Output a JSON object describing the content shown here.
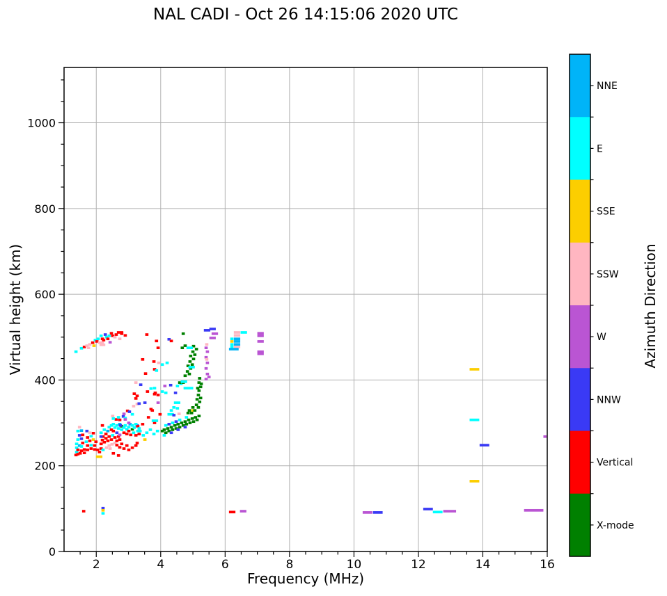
{
  "title": "NAL CADI - Oct 26 14:15:06 2020 UTC",
  "chart_data": {
    "type": "scatter",
    "title": "NAL CADI - Oct 26 14:15:06 2020 UTC",
    "xlabel": "Frequency (MHz)",
    "ylabel": "Virtual height (km)",
    "xlim": [
      1,
      16
    ],
    "ylim": [
      0,
      1129
    ],
    "x_major_ticks": [
      2,
      4,
      6,
      8,
      10,
      12,
      14,
      16
    ],
    "y_major_ticks": [
      0,
      200,
      400,
      600,
      800,
      1000
    ],
    "x_minor_step": 0.5,
    "y_minor_step": 50,
    "grid": true,
    "grid_color": "#b0b0b0",
    "point_bin": {
      "freq_mhz": 0.1,
      "height_km": 6
    },
    "colorbar": {
      "label": "Azimuth Direction",
      "categories_top_to_bottom": [
        {
          "name": "NNE",
          "color": "#00b4f8"
        },
        {
          "name": "E",
          "color": "#00ffff"
        },
        {
          "name": "SSE",
          "color": "#fcce00"
        },
        {
          "name": "SSW",
          "color": "#ffb6c1"
        },
        {
          "name": "W",
          "color": "#ba55d3"
        },
        {
          "name": "NNW",
          "color": "#3a3af5"
        },
        {
          "name": "Vertical",
          "color": "#ff0000"
        },
        {
          "name": "X-mode",
          "color": "#008000"
        }
      ]
    },
    "points_format": "[freq_MHz, virtual_height_km, category_index, width_bins(optional)]",
    "points": [
      [
        1.37,
        466,
        1
      ],
      [
        1.54,
        474,
        1
      ],
      [
        1.63,
        477,
        6
      ],
      [
        1.71,
        480,
        3
      ],
      [
        1.76,
        475,
        3
      ],
      [
        1.8,
        483,
        3
      ],
      [
        1.89,
        487,
        6
      ],
      [
        1.93,
        480,
        2
      ],
      [
        1.97,
        493,
        1
      ],
      [
        2.02,
        490,
        6
      ],
      [
        2.06,
        496,
        1
      ],
      [
        2.1,
        487,
        3
      ],
      [
        2.15,
        482,
        3
      ],
      [
        2.19,
        487,
        3
      ],
      [
        2.23,
        482,
        3
      ],
      [
        2.15,
        503,
        1
      ],
      [
        2.19,
        496,
        6
      ],
      [
        2.23,
        493,
        6
      ],
      [
        2.28,
        506,
        5
      ],
      [
        2.32,
        500,
        1
      ],
      [
        2.36,
        496,
        6
      ],
      [
        2.4,
        503,
        1
      ],
      [
        2.47,
        509,
        6
      ],
      [
        2.51,
        503,
        6
      ],
      [
        2.58,
        500,
        3
      ],
      [
        2.62,
        506,
        6
      ],
      [
        2.69,
        511,
        6,
        2
      ],
      [
        2.79,
        508,
        6
      ],
      [
        2.9,
        504,
        6
      ],
      [
        2.73,
        496,
        3
      ],
      [
        2.43,
        488,
        4
      ],
      [
        3.57,
        506,
        6
      ],
      [
        3.87,
        491,
        6
      ],
      [
        3.92,
        475,
        6
      ],
      [
        3.44,
        448,
        6
      ],
      [
        3.79,
        443,
        6
      ],
      [
        3.94,
        440,
        3
      ],
      [
        4.05,
        436,
        1
      ],
      [
        4.2,
        440,
        1
      ],
      [
        4.26,
        495,
        5
      ],
      [
        4.33,
        491,
        6
      ],
      [
        3.53,
        415,
        6
      ],
      [
        3.81,
        425,
        6
      ],
      [
        3.87,
        422,
        1
      ],
      [
        3.23,
        394,
        3
      ],
      [
        3.38,
        389,
        5
      ],
      [
        3.18,
        368,
        6
      ],
      [
        3.27,
        363,
        6
      ],
      [
        3.81,
        367,
        6
      ],
      [
        3.92,
        365,
        6
      ],
      [
        4.46,
        370,
        5
      ],
      [
        2.51,
        316,
        3
      ],
      [
        2.62,
        308,
        6
      ],
      [
        2.73,
        307,
        6
      ],
      [
        2.84,
        315,
        5
      ],
      [
        2.9,
        311,
        1
      ],
      [
        2.97,
        328,
        6
      ],
      [
        3.03,
        326,
        5
      ],
      [
        3.12,
        320,
        1
      ],
      [
        3.16,
        339,
        3
      ],
      [
        3.27,
        344,
        3
      ],
      [
        3.33,
        345,
        5
      ],
      [
        3.51,
        347,
        5
      ],
      [
        3.59,
        373,
        6
      ],
      [
        3.7,
        380,
        1
      ],
      [
        3.81,
        381,
        1
      ],
      [
        3.83,
        370,
        6
      ],
      [
        3.23,
        357,
        6
      ],
      [
        3.7,
        332,
        6
      ],
      [
        3.74,
        329,
        6
      ],
      [
        3.81,
        300,
        6
      ],
      [
        4.05,
        373,
        1
      ],
      [
        4.16,
        370,
        1
      ],
      [
        4.26,
        320,
        1,
        2
      ],
      [
        4.41,
        336,
        1
      ],
      [
        4.52,
        334,
        1
      ],
      [
        4.41,
        318,
        5
      ],
      [
        4.57,
        321,
        3
      ],
      [
        3.92,
        347,
        4
      ],
      [
        4.13,
        386,
        4
      ],
      [
        4.31,
        388,
        5
      ],
      [
        4.52,
        386,
        1
      ],
      [
        4.63,
        391,
        1
      ],
      [
        4.59,
        394,
        7
      ],
      [
        4.7,
        394,
        7
      ],
      [
        3.98,
        320,
        6
      ],
      [
        3.62,
        313,
        6
      ],
      [
        3.77,
        305,
        1,
        2
      ],
      [
        3.44,
        297,
        6
      ],
      [
        3.27,
        294,
        5
      ],
      [
        3.51,
        261,
        2
      ],
      [
        5.0,
        329,
        2
      ],
      [
        1.39,
        232,
        1
      ],
      [
        1.39,
        242,
        1
      ],
      [
        1.43,
        237,
        6
      ],
      [
        1.43,
        227,
        6
      ],
      [
        1.48,
        247,
        0
      ],
      [
        1.39,
        251,
        1
      ],
      [
        1.43,
        261,
        1
      ],
      [
        1.48,
        271,
        5
      ],
      [
        1.43,
        281,
        1
      ],
      [
        1.48,
        290,
        3
      ],
      [
        1.54,
        235,
        6
      ],
      [
        1.54,
        245,
        1
      ],
      [
        1.58,
        253,
        6
      ],
      [
        1.54,
        263,
        5
      ],
      [
        1.58,
        272,
        6
      ],
      [
        1.54,
        282,
        0
      ],
      [
        1.5,
        229,
        6
      ],
      [
        1.37,
        225,
        6
      ],
      [
        1.63,
        238,
        6
      ],
      [
        1.73,
        237,
        6
      ],
      [
        1.84,
        240,
        6
      ],
      [
        1.95,
        238,
        6
      ],
      [
        2.04,
        237,
        6
      ],
      [
        2.15,
        240,
        6
      ],
      [
        1.63,
        230,
        6
      ],
      [
        1.73,
        247,
        6
      ],
      [
        1.84,
        248,
        1
      ],
      [
        1.95,
        247,
        6
      ],
      [
        1.69,
        256,
        1
      ],
      [
        1.8,
        258,
        6
      ],
      [
        1.91,
        261,
        2
      ],
      [
        1.99,
        256,
        6
      ],
      [
        1.73,
        266,
        6
      ],
      [
        1.84,
        269,
        1
      ],
      [
        1.71,
        281,
        5
      ],
      [
        1.8,
        277,
        3
      ],
      [
        1.91,
        276,
        6
      ],
      [
        2.04,
        221,
        2,
        2
      ],
      [
        2.1,
        232,
        6
      ],
      [
        2.21,
        237,
        1
      ],
      [
        2.32,
        242,
        3
      ],
      [
        2.4,
        247,
        3
      ],
      [
        2.49,
        250,
        3
      ],
      [
        2.58,
        253,
        3
      ],
      [
        2.43,
        240,
        3
      ],
      [
        2.15,
        251,
        6
      ],
      [
        2.19,
        260,
        6
      ],
      [
        2.25,
        255,
        6
      ],
      [
        2.3,
        264,
        6
      ],
      [
        2.36,
        258,
        6
      ],
      [
        2.21,
        268,
        6
      ],
      [
        2.3,
        274,
        6
      ],
      [
        2.4,
        268,
        6
      ],
      [
        2.47,
        261,
        6
      ],
      [
        2.51,
        271,
        1
      ],
      [
        2.15,
        277,
        1
      ],
      [
        2.25,
        284,
        1
      ],
      [
        2.36,
        281,
        0
      ],
      [
        2.4,
        290,
        1
      ],
      [
        2.19,
        294,
        6
      ],
      [
        2.47,
        284,
        6
      ],
      [
        2.53,
        281,
        6
      ],
      [
        2.58,
        266,
        6
      ],
      [
        2.64,
        258,
        6
      ],
      [
        2.69,
        268,
        6
      ],
      [
        2.73,
        261,
        6
      ],
      [
        2.15,
        268,
        5
      ],
      [
        2.47,
        294,
        1
      ],
      [
        2.53,
        297,
        1
      ],
      [
        2.58,
        289,
        1
      ],
      [
        2.64,
        294,
        1
      ],
      [
        2.69,
        287,
        1
      ],
      [
        2.73,
        297,
        0
      ],
      [
        2.79,
        292,
        7
      ],
      [
        2.79,
        284,
        1
      ],
      [
        2.86,
        289,
        1
      ],
      [
        2.9,
        294,
        1
      ],
      [
        2.95,
        285,
        1
      ],
      [
        3.01,
        290,
        1
      ],
      [
        3.05,
        297,
        0
      ],
      [
        3.12,
        285,
        7
      ],
      [
        3.12,
        294,
        1
      ],
      [
        3.18,
        289,
        1
      ],
      [
        3.23,
        297,
        1
      ],
      [
        3.29,
        292,
        6
      ],
      [
        3.33,
        287,
        1
      ],
      [
        2.86,
        277,
        6
      ],
      [
        2.95,
        274,
        6
      ],
      [
        3.01,
        281,
        6
      ],
      [
        3.07,
        272,
        6
      ],
      [
        3.16,
        277,
        1
      ],
      [
        3.23,
        271,
        6
      ],
      [
        3.29,
        281,
        1
      ],
      [
        3.33,
        274,
        6
      ],
      [
        2.64,
        277,
        5
      ],
      [
        2.73,
        272,
        4
      ],
      [
        2.64,
        248,
        6
      ],
      [
        2.73,
        243,
        6
      ],
      [
        2.79,
        251,
        6
      ],
      [
        2.86,
        240,
        6
      ],
      [
        2.95,
        247,
        6
      ],
      [
        3.01,
        237,
        6
      ],
      [
        3.12,
        242,
        6
      ],
      [
        3.23,
        247,
        6
      ],
      [
        3.27,
        253,
        6
      ],
      [
        2.53,
        229,
        6
      ],
      [
        2.69,
        224,
        6
      ],
      [
        2.86,
        321,
        4
      ],
      [
        2.9,
        308,
        4
      ],
      [
        3.01,
        300,
        4
      ],
      [
        2.53,
        310,
        1
      ],
      [
        2.69,
        313,
        1
      ],
      [
        2.75,
        294,
        5
      ],
      [
        4.05,
        281,
        7
      ],
      [
        4.11,
        284,
        7
      ],
      [
        4.16,
        277,
        7
      ],
      [
        4.22,
        287,
        7
      ],
      [
        4.26,
        281,
        7
      ],
      [
        4.33,
        290,
        7
      ],
      [
        4.37,
        284,
        7
      ],
      [
        4.44,
        294,
        7
      ],
      [
        4.48,
        287,
        7
      ],
      [
        4.54,
        297,
        7
      ],
      [
        4.59,
        290,
        7
      ],
      [
        4.65,
        300,
        7
      ],
      [
        4.7,
        294,
        7
      ],
      [
        4.76,
        303,
        7
      ],
      [
        4.8,
        297,
        7
      ],
      [
        4.87,
        307,
        7
      ],
      [
        4.91,
        300,
        7
      ],
      [
        4.98,
        310,
        7
      ],
      [
        5.02,
        303,
        7
      ],
      [
        5.08,
        313,
        7
      ],
      [
        5.13,
        307,
        7
      ],
      [
        5.19,
        316,
        7
      ],
      [
        4.33,
        277,
        5
      ],
      [
        4.54,
        284,
        5
      ],
      [
        4.76,
        290,
        5
      ],
      [
        4.26,
        297,
        5
      ],
      [
        4.48,
        303,
        5
      ],
      [
        4.16,
        294,
        1
      ],
      [
        4.37,
        300,
        1
      ],
      [
        4.59,
        307,
        1
      ],
      [
        4.8,
        313,
        1
      ],
      [
        4.11,
        271,
        1
      ],
      [
        3.9,
        281,
        1
      ],
      [
        3.79,
        274,
        1
      ],
      [
        3.68,
        284,
        1
      ],
      [
        3.57,
        277,
        1
      ],
      [
        3.46,
        271,
        1
      ],
      [
        3.36,
        281,
        1
      ],
      [
        4.85,
        323,
        7
      ],
      [
        4.89,
        329,
        7
      ],
      [
        4.96,
        323,
        7
      ],
      [
        5.0,
        336,
        7
      ],
      [
        5.06,
        329,
        7
      ],
      [
        5.11,
        342,
        7
      ],
      [
        5.17,
        336,
        7
      ],
      [
        5.21,
        349,
        7
      ],
      [
        5.13,
        355,
        7
      ],
      [
        5.17,
        365,
        7
      ],
      [
        5.24,
        358,
        7
      ],
      [
        5.19,
        375,
        7
      ],
      [
        5.24,
        384,
        7
      ],
      [
        5.15,
        381,
        7
      ],
      [
        5.19,
        394,
        7
      ],
      [
        5.26,
        391,
        7
      ],
      [
        5.21,
        404,
        7
      ],
      [
        4.76,
        410,
        7
      ],
      [
        4.83,
        420,
        7
      ],
      [
        4.89,
        414,
        7
      ],
      [
        4.93,
        427,
        7
      ],
      [
        4.85,
        433,
        7
      ],
      [
        4.91,
        443,
        7
      ],
      [
        4.98,
        436,
        7
      ],
      [
        5.02,
        449,
        7
      ],
      [
        4.93,
        456,
        7
      ],
      [
        5.0,
        466,
        7
      ],
      [
        5.06,
        459,
        7
      ],
      [
        5.11,
        472,
        7
      ],
      [
        5.02,
        479,
        7
      ],
      [
        4.7,
        508,
        7
      ],
      [
        4.76,
        480,
        7
      ],
      [
        4.67,
        475,
        7
      ],
      [
        5.41,
        402,
        4
      ],
      [
        5.45,
        414,
        4
      ],
      [
        5.41,
        427,
        4
      ],
      [
        5.45,
        440,
        4
      ],
      [
        5.41,
        453,
        4
      ],
      [
        5.45,
        466,
        4
      ],
      [
        5.41,
        475,
        4
      ],
      [
        5.5,
        407,
        4
      ],
      [
        5.56,
        498,
        4,
        2
      ],
      [
        5.63,
        508,
        4,
        2
      ],
      [
        5.39,
        516,
        5,
        2
      ],
      [
        5.56,
        519,
        5,
        2
      ],
      [
        5.43,
        483,
        3
      ],
      [
        5.43,
        448,
        3
      ],
      [
        4.85,
        475,
        1,
        2
      ],
      [
        4.91,
        430,
        1,
        2
      ],
      [
        4.67,
        396,
        1,
        2
      ],
      [
        4.76,
        381,
        1,
        3
      ],
      [
        4.46,
        347,
        1,
        2
      ],
      [
        4.33,
        329,
        1
      ],
      [
        6.21,
        496,
        1
      ],
      [
        6.21,
        490,
        2
      ],
      [
        6.21,
        483,
        1
      ],
      [
        6.21,
        477,
        1
      ],
      [
        6.32,
        511,
        3,
        2
      ],
      [
        6.32,
        504,
        3,
        2
      ],
      [
        6.32,
        496,
        0,
        2
      ],
      [
        6.32,
        490,
        0,
        2
      ],
      [
        6.32,
        483,
        0,
        2
      ],
      [
        6.32,
        477,
        3,
        2
      ],
      [
        6.17,
        472,
        0,
        3
      ],
      [
        6.53,
        511,
        1,
        2
      ],
      [
        7.05,
        509,
        4,
        2
      ],
      [
        7.05,
        503,
        4,
        2
      ],
      [
        7.05,
        490,
        4,
        2
      ],
      [
        7.05,
        466,
        4,
        2
      ],
      [
        7.05,
        461,
        4,
        2
      ],
      [
        13.64,
        425,
        2,
        3
      ],
      [
        13.64,
        307,
        1,
        3
      ],
      [
        13.95,
        248,
        5,
        3
      ],
      [
        13.64,
        164,
        2,
        3
      ],
      [
        15.93,
        268,
        4
      ],
      [
        1.61,
        94,
        6
      ],
      [
        2.21,
        101,
        5
      ],
      [
        2.21,
        96,
        2
      ],
      [
        2.21,
        89,
        1
      ],
      [
        6.17,
        92,
        6,
        2
      ],
      [
        6.51,
        94,
        4,
        2
      ],
      [
        10.32,
        91,
        4,
        3
      ],
      [
        10.64,
        91,
        5,
        3
      ],
      [
        12.2,
        99,
        5,
        3
      ],
      [
        12.5,
        92,
        1,
        3
      ],
      [
        12.82,
        94,
        4,
        4
      ],
      [
        15.33,
        96,
        4,
        6
      ]
    ]
  }
}
